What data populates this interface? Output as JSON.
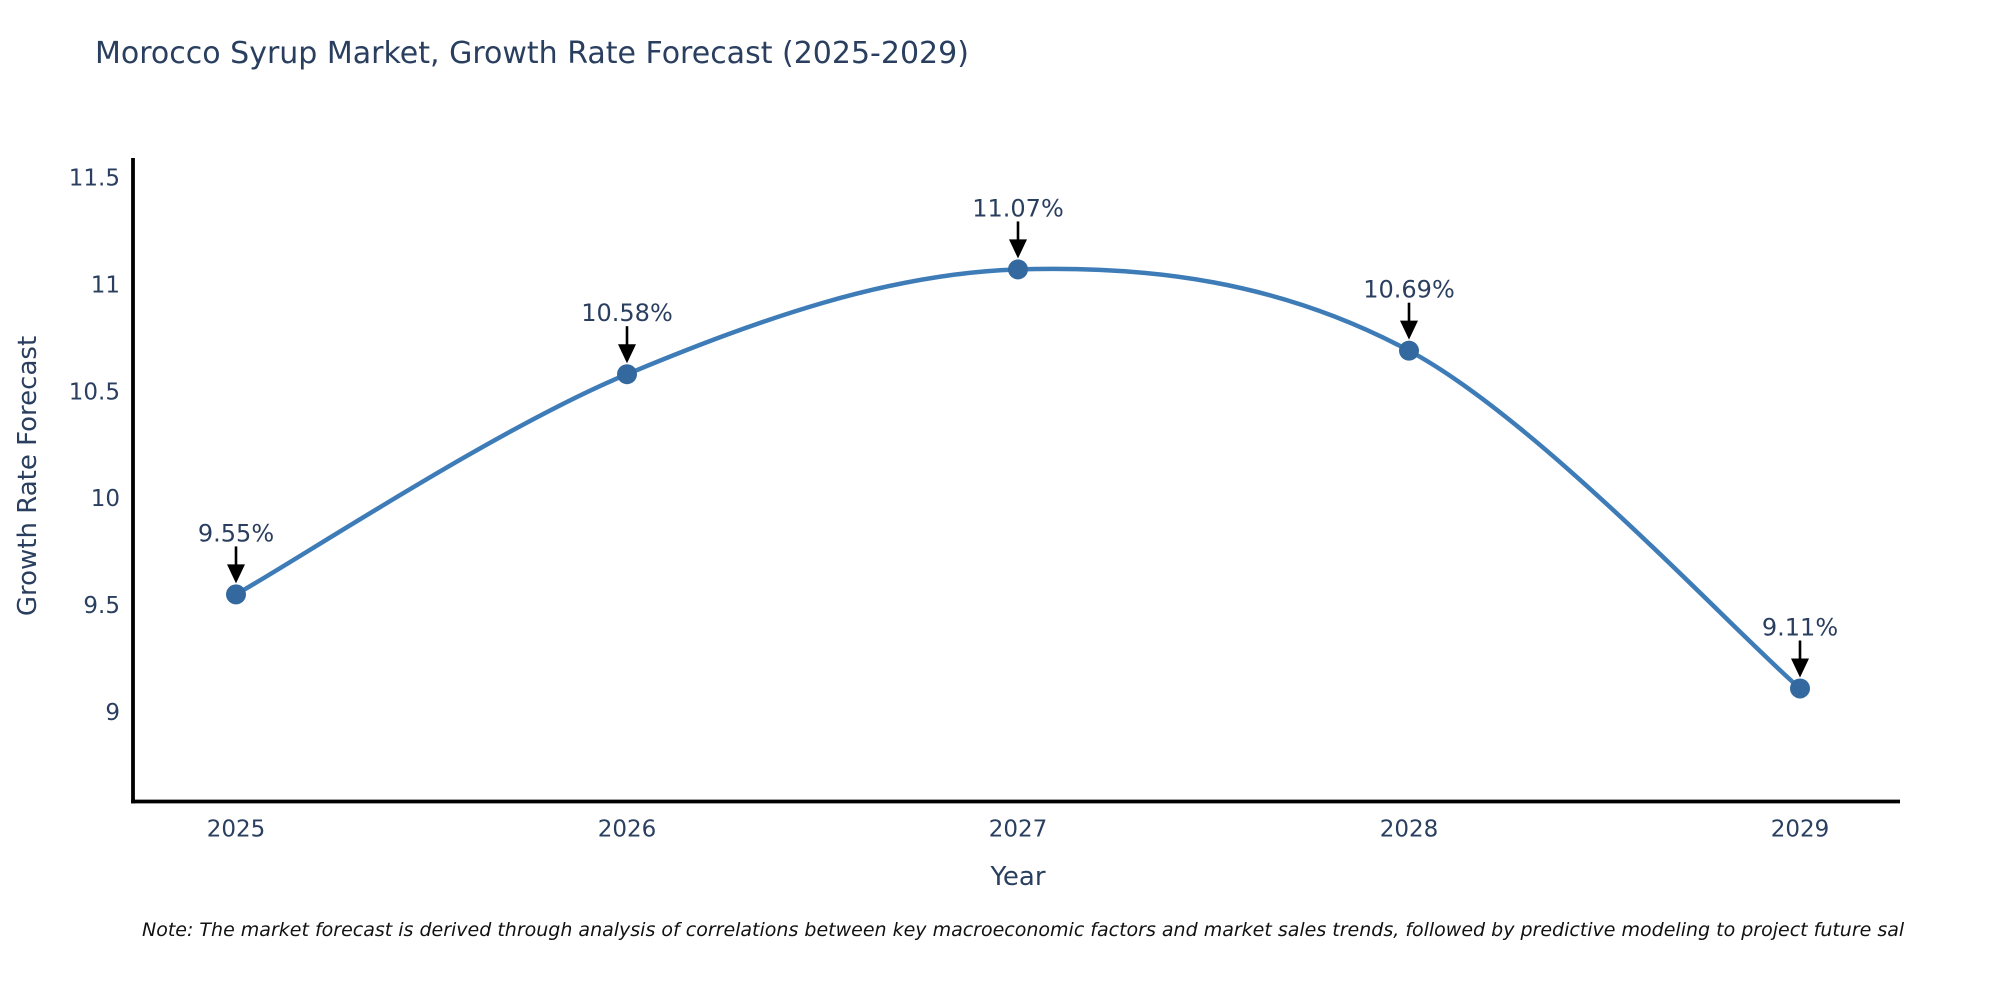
{
  "title": "Morocco Syrup Market, Growth Rate Forecast (2025-2029)",
  "note": "Note: The market forecast is derived through analysis of correlations between key macroeconomic factors and market sales trends, followed by predictive modeling to project future sal",
  "colors": {
    "line": "#3E7CB8",
    "marker": "#33699F",
    "text": "#2a3f5f",
    "axis": "#000000",
    "arrow": "#000000",
    "background": "#ffffff"
  },
  "chart_data": {
    "type": "line",
    "title": "Morocco Syrup Market, Growth Rate Forecast (2025-2029)",
    "xlabel": "Year",
    "ylabel": "Growth Rate Forecast",
    "categories": [
      "2025",
      "2026",
      "2027",
      "2028",
      "2029"
    ],
    "values": [
      9.55,
      10.58,
      11.07,
      10.69,
      9.11
    ],
    "point_labels": [
      "9.55%",
      "10.58%",
      "11.07%",
      "10.69%",
      "9.11%"
    ],
    "yticks": [
      9,
      9.5,
      10,
      10.5,
      11,
      11.5
    ],
    "ylim": [
      8.57,
      11.59
    ],
    "grid": false,
    "line_shape": "spline",
    "legend": "none",
    "annotation_style": "black-down-arrows"
  }
}
